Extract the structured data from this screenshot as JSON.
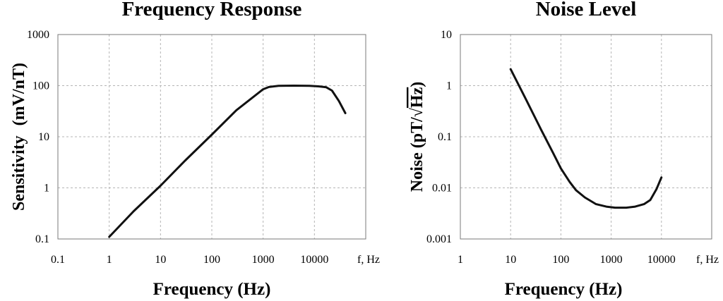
{
  "chart_data": [
    {
      "type": "line",
      "title": "Frequency Response",
      "xlabel": "Frequency (Hz)",
      "ylabel_main": "Sensitivity",
      "ylabel_unit": "(mV/nT)",
      "x_unit_label": "f, Hz",
      "xscale": "log",
      "yscale": "log",
      "xlim": [
        0.1,
        100000
      ],
      "ylim": [
        0.1,
        1000
      ],
      "x_ticks": [
        "0.1",
        "1",
        "10",
        "100",
        "1000",
        "10000"
      ],
      "y_ticks": [
        "0.1",
        "1",
        "10",
        "100",
        "1000"
      ],
      "grid": true,
      "series": [
        {
          "x": [
            1,
            3,
            10,
            30,
            100,
            300,
            1000,
            1300,
            2000,
            4000,
            8000,
            12000,
            17000,
            22000,
            30000,
            40000
          ],
          "y": [
            0.11,
            0.35,
            1.1,
            3.4,
            11,
            33,
            85,
            94,
            99,
            100,
            99,
            97,
            93,
            80,
            50,
            29
          ]
        }
      ]
    },
    {
      "type": "line",
      "title": "Noise Level",
      "xlabel": "Frequency (Hz)",
      "ylabel_main": "Noise (pT/",
      "ylabel_root": "√",
      "ylabel_radicand": "Hz",
      "ylabel_close": ")",
      "x_unit_label": "f, Hz",
      "xscale": "log",
      "yscale": "log",
      "xlim": [
        1,
        100000
      ],
      "ylim": [
        0.001,
        10
      ],
      "x_ticks": [
        "1",
        "10",
        "100",
        "1000",
        "10000"
      ],
      "y_ticks": [
        "0.001",
        "0.01",
        "0.1",
        "1",
        "10"
      ],
      "grid": true,
      "series": [
        {
          "x": [
            10,
            20,
            40,
            70,
            100,
            150,
            200,
            300,
            500,
            800,
            1200,
            2000,
            3000,
            4500,
            6000,
            8000,
            10000
          ],
          "y": [
            2.1,
            0.55,
            0.14,
            0.048,
            0.024,
            0.013,
            0.009,
            0.0065,
            0.0048,
            0.0043,
            0.0041,
            0.0041,
            0.0043,
            0.0048,
            0.0058,
            0.0095,
            0.016
          ]
        }
      ]
    }
  ]
}
